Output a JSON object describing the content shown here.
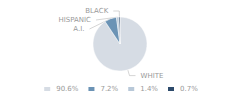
{
  "chart_data": {
    "type": "pie",
    "categories": [
      "WHITE",
      "A.I.",
      "HISPANIC",
      "BLACK"
    ],
    "values": [
      90.6,
      7.2,
      1.4,
      0.7
    ],
    "value_labels": [
      "90.6%",
      "7.2%",
      "1.4%",
      "0.7%"
    ],
    "colors": [
      "#d6dce4",
      "#6b93b5",
      "#b8c8d8",
      "#2d4a6b"
    ],
    "legend": "bottom"
  }
}
